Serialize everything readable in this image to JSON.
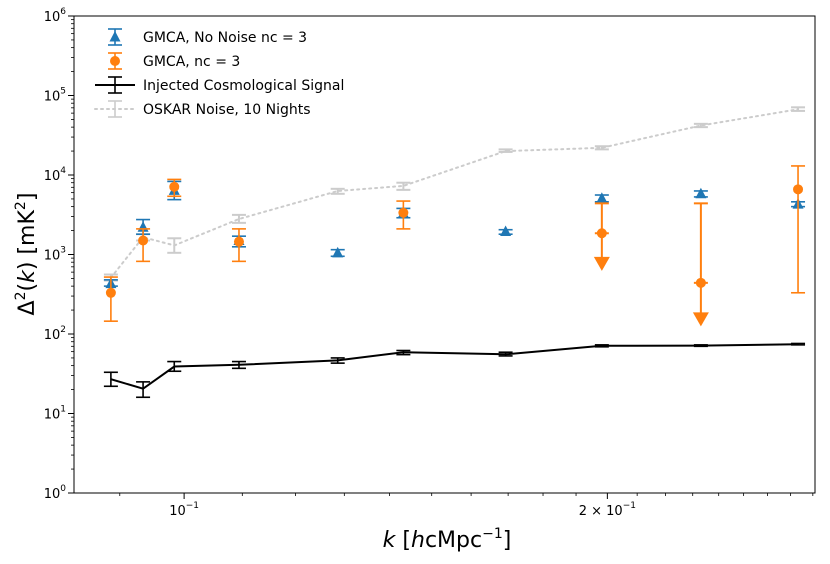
{
  "chart_data": {
    "type": "scatter",
    "xlabel": "k [hcMpc⁻¹]",
    "ylabel": "Δ²(k) [mK²]",
    "xscale": "log",
    "yscale": "log",
    "xlim": [
      0.0835,
      0.281
    ],
    "ylim": [
      1,
      1000000
    ],
    "x_ticks": [
      {
        "value": 0.1,
        "base": "10",
        "exp": "−1",
        "mant": ""
      },
      {
        "value": 0.2,
        "base": "10",
        "exp": "−1",
        "mant": "2 × "
      }
    ],
    "y_ticks": [
      {
        "value": 1,
        "base": "10",
        "exp": "0"
      },
      {
        "value": 10,
        "base": "10",
        "exp": "1"
      },
      {
        "value": 100,
        "base": "10",
        "exp": "2"
      },
      {
        "value": 1000,
        "base": "10",
        "exp": "3"
      },
      {
        "value": 10000,
        "base": "10",
        "exp": "4"
      },
      {
        "value": 100000,
        "base": "10",
        "exp": "5"
      },
      {
        "value": 1000000,
        "base": "10",
        "exp": "6"
      }
    ],
    "legend": {
      "placement": "top-left",
      "entries": [
        {
          "label": "GMCA, No Noise nc = 3",
          "series": 0
        },
        {
          "label": "GMCA, nc = 3",
          "series": 1
        },
        {
          "label": "Injected Cosmological Signal",
          "series": 2
        },
        {
          "label": "OSKAR Noise, 10 Nights",
          "series": 3
        }
      ]
    },
    "series": [
      {
        "name": "GMCA, No Noise nc = 3",
        "color": "#1f77b4",
        "marker": "triangle",
        "line": "none",
        "points": [
          {
            "x": 0.0887,
            "y": 430,
            "lo": 400,
            "hi": 480
          },
          {
            "x": 0.0935,
            "y": 2200,
            "lo": 1800,
            "hi": 2750
          },
          {
            "x": 0.0984,
            "y": 6400,
            "lo": 4900,
            "hi": 8300
          },
          {
            "x": 0.1094,
            "y": 1500,
            "lo": 1250,
            "hi": 1700
          },
          {
            "x": 0.1286,
            "y": 1050,
            "lo": 950,
            "hi": 1150
          },
          {
            "x": 0.1432,
            "y": 3300,
            "lo": 2900,
            "hi": 3800
          },
          {
            "x": 0.1693,
            "y": 1950,
            "lo": 1800,
            "hi": 2050
          },
          {
            "x": 0.1982,
            "y": 5100,
            "lo": 4600,
            "hi": 5600
          },
          {
            "x": 0.2331,
            "y": 5800,
            "lo": 5300,
            "hi": 6300
          },
          {
            "x": 0.2733,
            "y": 4300,
            "lo": 4000,
            "hi": 4600
          }
        ]
      },
      {
        "name": "GMCA, nc = 3",
        "color": "#ff7f0e",
        "marker": "circle",
        "line": "none",
        "points": [
          {
            "x": 0.0887,
            "y": 330,
            "lo": 145,
            "hi": 520
          },
          {
            "x": 0.0935,
            "y": 1500,
            "lo": 820,
            "hi": 2100
          },
          {
            "x": 0.0984,
            "y": 7100,
            "lo": 5400,
            "hi": 8800
          },
          {
            "x": 0.1094,
            "y": 1450,
            "lo": 820,
            "hi": 2100
          },
          {
            "x": 0.1432,
            "y": 3350,
            "lo": 2100,
            "hi": 4700
          },
          {
            "x": 0.1982,
            "y": 1850,
            "lo": 700,
            "hi": 4400,
            "upper_limit": true
          },
          {
            "x": 0.2331,
            "y": 440,
            "lo": 140,
            "hi": 4400,
            "upper_limit": true
          },
          {
            "x": 0.2733,
            "y": 6600,
            "lo": 330,
            "hi": 13000
          }
        ]
      },
      {
        "name": "Injected Cosmological Signal",
        "color": "#000000",
        "marker": "none",
        "line": "solid",
        "points": [
          {
            "x": 0.0887,
            "y": 27,
            "lo": 22,
            "hi": 33
          },
          {
            "x": 0.0935,
            "y": 20.5,
            "lo": 16,
            "hi": 25
          },
          {
            "x": 0.0984,
            "y": 39,
            "lo": 34,
            "hi": 45
          },
          {
            "x": 0.1094,
            "y": 41,
            "lo": 37,
            "hi": 45
          },
          {
            "x": 0.1286,
            "y": 46.5,
            "lo": 43,
            "hi": 50
          },
          {
            "x": 0.1432,
            "y": 59,
            "lo": 55,
            "hi": 62
          },
          {
            "x": 0.1693,
            "y": 55.5,
            "lo": 53,
            "hi": 59
          },
          {
            "x": 0.1982,
            "y": 71,
            "lo": 69,
            "hi": 73
          },
          {
            "x": 0.2331,
            "y": 71.5,
            "lo": 70,
            "hi": 73
          },
          {
            "x": 0.2733,
            "y": 74.5,
            "lo": 73,
            "hi": 76
          }
        ]
      },
      {
        "name": "OSKAR Noise, 10 Nights",
        "color": "#cccccc",
        "marker": "none",
        "line": "dotted",
        "points": [
          {
            "x": 0.0887,
            "y": 510,
            "lo": 470,
            "hi": 560
          },
          {
            "x": 0.0935,
            "y": 1650,
            "lo": 1500,
            "hi": 1800
          },
          {
            "x": 0.0984,
            "y": 1300,
            "lo": 1050,
            "hi": 1600
          },
          {
            "x": 0.1094,
            "y": 2800,
            "lo": 2500,
            "hi": 3150
          },
          {
            "x": 0.1286,
            "y": 6300,
            "lo": 5800,
            "hi": 6700
          },
          {
            "x": 0.1432,
            "y": 7300,
            "lo": 6500,
            "hi": 8000
          },
          {
            "x": 0.1693,
            "y": 20000,
            "lo": 19500,
            "hi": 21000
          },
          {
            "x": 0.1982,
            "y": 22000,
            "lo": 21000,
            "hi": 23000
          },
          {
            "x": 0.2331,
            "y": 42000,
            "lo": 40000,
            "hi": 44000
          },
          {
            "x": 0.2733,
            "y": 67000,
            "lo": 64000,
            "hi": 71000
          }
        ]
      }
    ]
  }
}
